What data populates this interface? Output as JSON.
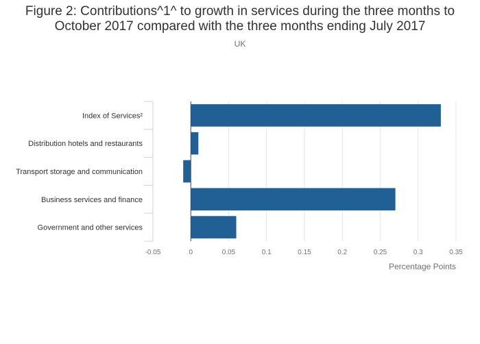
{
  "chart_data": {
    "type": "bar",
    "orientation": "horizontal",
    "title": "Figure 2: Contributions^1^ to growth in services during the three months to October 2017 compared with the three months ending July 2017",
    "subtitle": "UK",
    "categories": [
      "Index of Services²",
      "Distribution hotels and restaurants",
      "Transport storage and communication",
      "Business services and finance",
      "Government and other services"
    ],
    "values": [
      0.33,
      0.01,
      -0.01,
      0.27,
      0.06
    ],
    "xlabel": "Percentage Points",
    "ylabel": "",
    "xlim": [
      -0.05,
      0.35
    ],
    "xticks": [
      "-0.05",
      "0",
      "0.05",
      "0.1",
      "0.15",
      "0.2",
      "0.25",
      "0.3",
      "0.35"
    ],
    "bar_color": "#206095",
    "grid": true,
    "legend": "none"
  }
}
